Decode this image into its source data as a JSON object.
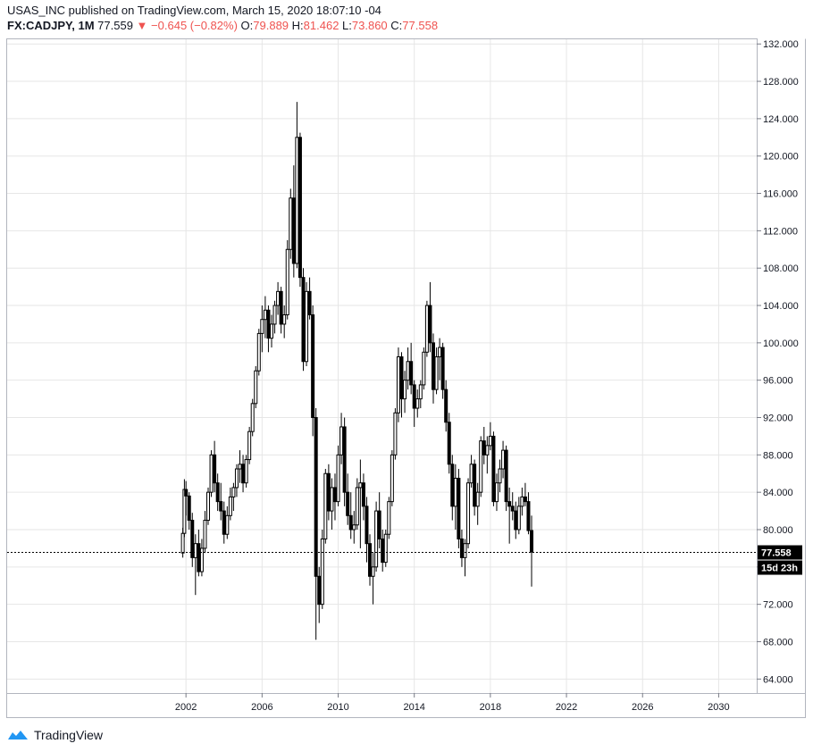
{
  "header": {
    "published": "USAS_INC published on TradingView.com, March 15, 2020 18:07:10 -04",
    "symbol": "FX:CADJPY, 1M",
    "last": "77.559",
    "change": "−0.645 (−0.82%)",
    "o_label": "O:",
    "o_value": "79.889",
    "h_label": "H:",
    "h_value": "81.462",
    "l_label": "L:",
    "l_value": "73.860",
    "c_label": "C:",
    "c_value": "77.558"
  },
  "footer": {
    "brand": "TradingView",
    "logo_icon": "tradingview-logo-icon"
  },
  "colors": {
    "candle": "#000000",
    "down_arrow": "#ef5350",
    "grid": "#e6e6e6",
    "price_tag": "#000000"
  },
  "chart_data": {
    "type": "candlestick",
    "symbol": "FX:CADJPY",
    "interval": "1M",
    "x_ticks": [
      "2002",
      "2006",
      "2010",
      "2014",
      "2018",
      "2022",
      "2026",
      "2030"
    ],
    "y_ticks": [
      "64.000",
      "68.000",
      "72.000",
      "76.000",
      "80.000",
      "84.000",
      "88.000",
      "92.000",
      "96.000",
      "100.000",
      "104.000",
      "108.000",
      "112.000",
      "116.000",
      "120.000",
      "124.000",
      "128.000",
      "132.000"
    ],
    "ylim": [
      62.5,
      132.5
    ],
    "xlim": [
      1992.6,
      2032.0
    ],
    "grid": true,
    "last_price_label": "77.558",
    "last_price": 77.558,
    "countdown_label": "15d 23h",
    "series": [
      {
        "t": "2001-11",
        "v": [
          77.5,
          80.2,
          77.0,
          79.6
        ]
      },
      {
        "t": "2001-12",
        "v": [
          79.6,
          85.4,
          79.2,
          84.3
        ]
      },
      {
        "t": "2002-01",
        "v": [
          84.3,
          85.2,
          81.5,
          83.6
        ]
      },
      {
        "t": "2002-03",
        "v": [
          83.6,
          84.0,
          80.0,
          81.0
        ]
      },
      {
        "t": "2002-05",
        "v": [
          81.0,
          81.8,
          76.0,
          77.0
        ]
      },
      {
        "t": "2002-07",
        "v": [
          77.0,
          79.5,
          73.0,
          78.5
        ]
      },
      {
        "t": "2002-09",
        "v": [
          78.5,
          80.0,
          75.0,
          75.5
        ]
      },
      {
        "t": "2002-11",
        "v": [
          75.5,
          79.0,
          75.0,
          78.0
        ]
      },
      {
        "t": "2003-01",
        "v": [
          78.0,
          82.0,
          77.5,
          81.0
        ]
      },
      {
        "t": "2003-03",
        "v": [
          81.0,
          84.5,
          80.5,
          84.0
        ]
      },
      {
        "t": "2003-05",
        "v": [
          84.0,
          88.5,
          83.5,
          88.0
        ]
      },
      {
        "t": "2003-07",
        "v": [
          88.0,
          89.5,
          84.0,
          85.0
        ]
      },
      {
        "t": "2003-09",
        "v": [
          85.0,
          86.0,
          82.0,
          83.0
        ]
      },
      {
        "t": "2003-11",
        "v": [
          83.0,
          85.0,
          81.0,
          82.0
        ]
      },
      {
        "t": "2004-01",
        "v": [
          82.0,
          83.0,
          78.5,
          79.5
        ]
      },
      {
        "t": "2004-03",
        "v": [
          79.5,
          82.5,
          79.0,
          81.5
        ]
      },
      {
        "t": "2004-05",
        "v": [
          81.5,
          84.5,
          81.0,
          83.5
        ]
      },
      {
        "t": "2004-07",
        "v": [
          83.5,
          85.0,
          82.0,
          84.5
        ]
      },
      {
        "t": "2004-09",
        "v": [
          84.5,
          87.0,
          83.5,
          86.5
        ]
      },
      {
        "t": "2004-11",
        "v": [
          86.5,
          88.5,
          85.0,
          87.0
        ]
      },
      {
        "t": "2005-01",
        "v": [
          87.0,
          88.0,
          84.0,
          85.0
        ]
      },
      {
        "t": "2005-03",
        "v": [
          85.0,
          88.0,
          84.5,
          87.5
        ]
      },
      {
        "t": "2005-05",
        "v": [
          87.5,
          91.0,
          87.0,
          90.5
        ]
      },
      {
        "t": "2005-07",
        "v": [
          90.5,
          94.0,
          90.0,
          93.5
        ]
      },
      {
        "t": "2005-09",
        "v": [
          93.5,
          97.5,
          93.0,
          97.0
        ]
      },
      {
        "t": "2005-11",
        "v": [
          97.0,
          101.5,
          96.5,
          101.0
        ]
      },
      {
        "t": "2006-01",
        "v": [
          101.0,
          104.0,
          99.0,
          102.5
        ]
      },
      {
        "t": "2006-03",
        "v": [
          102.5,
          105.0,
          100.5,
          103.5
        ]
      },
      {
        "t": "2006-05",
        "v": [
          103.5,
          104.0,
          99.0,
          100.5
        ]
      },
      {
        "t": "2006-07",
        "v": [
          100.5,
          103.0,
          99.5,
          102.0
        ]
      },
      {
        "t": "2006-09",
        "v": [
          102.0,
          104.5,
          101.0,
          104.0
        ]
      },
      {
        "t": "2006-11",
        "v": [
          104.0,
          106.5,
          103.0,
          105.5
        ]
      },
      {
        "t": "2007-01",
        "v": [
          105.5,
          106.0,
          101.0,
          102.0
        ]
      },
      {
        "t": "2007-03",
        "v": [
          102.0,
          104.0,
          100.5,
          103.0
        ]
      },
      {
        "t": "2007-05",
        "v": [
          103.0,
          111.0,
          102.5,
          110.0
        ]
      },
      {
        "t": "2007-07",
        "v": [
          110.0,
          116.5,
          109.0,
          115.5
        ]
      },
      {
        "t": "2007-09",
        "v": [
          115.5,
          119.0,
          107.0,
          108.5
        ]
      },
      {
        "t": "2007-11",
        "v": [
          108.5,
          125.8,
          108.0,
          122.0
        ]
      },
      {
        "t": "2008-01",
        "v": [
          122.0,
          122.5,
          106.0,
          107.0
        ]
      },
      {
        "t": "2008-03",
        "v": [
          107.0,
          108.0,
          97.0,
          98.0
        ]
      },
      {
        "t": "2008-05",
        "v": [
          98.0,
          106.5,
          97.5,
          105.5
        ]
      },
      {
        "t": "2008-07",
        "v": [
          105.5,
          107.0,
          102.5,
          103.0
        ]
      },
      {
        "t": "2008-09",
        "v": [
          103.0,
          104.0,
          90.0,
          92.0
        ]
      },
      {
        "t": "2008-11",
        "v": [
          92.0,
          93.0,
          68.2,
          75.0
        ]
      },
      {
        "t": "2009-01",
        "v": [
          75.0,
          76.0,
          70.0,
          72.0
        ]
      },
      {
        "t": "2009-03",
        "v": [
          72.0,
          80.0,
          71.5,
          79.0
        ]
      },
      {
        "t": "2009-05",
        "v": [
          79.0,
          86.5,
          78.5,
          86.0
        ]
      },
      {
        "t": "2009-07",
        "v": [
          86.0,
          87.0,
          81.0,
          82.0
        ]
      },
      {
        "t": "2009-09",
        "v": [
          82.0,
          85.5,
          80.0,
          84.5
        ]
      },
      {
        "t": "2009-11",
        "v": [
          84.5,
          86.0,
          81.0,
          83.0
        ]
      },
      {
        "t": "2010-01",
        "v": [
          83.0,
          89.0,
          82.5,
          88.0
        ]
      },
      {
        "t": "2010-03",
        "v": [
          88.0,
          92.5,
          87.0,
          91.0
        ]
      },
      {
        "t": "2010-05",
        "v": [
          91.0,
          92.0,
          82.5,
          84.0
        ]
      },
      {
        "t": "2010-07",
        "v": [
          84.0,
          86.0,
          80.5,
          81.5
        ]
      },
      {
        "t": "2010-09",
        "v": [
          81.5,
          84.0,
          79.0,
          80.0
        ]
      },
      {
        "t": "2010-11",
        "v": [
          80.0,
          82.0,
          78.5,
          80.5
        ]
      },
      {
        "t": "2011-01",
        "v": [
          80.5,
          85.5,
          80.0,
          84.5
        ]
      },
      {
        "t": "2011-03",
        "v": [
          84.5,
          87.5,
          78.0,
          85.0
        ]
      },
      {
        "t": "2011-05",
        "v": [
          85.0,
          86.0,
          81.0,
          82.5
        ]
      },
      {
        "t": "2011-07",
        "v": [
          82.5,
          83.5,
          76.5,
          78.5
        ]
      },
      {
        "t": "2011-09",
        "v": [
          78.5,
          79.5,
          74.0,
          75.0
        ]
      },
      {
        "t": "2011-11",
        "v": [
          75.0,
          77.5,
          72.0,
          76.0
        ]
      },
      {
        "t": "2012-01",
        "v": [
          76.0,
          83.0,
          75.5,
          82.0
        ]
      },
      {
        "t": "2012-03",
        "v": [
          82.0,
          84.0,
          78.0,
          79.0
        ]
      },
      {
        "t": "2012-05",
        "v": [
          79.0,
          80.0,
          75.5,
          76.5
        ]
      },
      {
        "t": "2012-07",
        "v": [
          76.5,
          80.0,
          76.0,
          79.5
        ]
      },
      {
        "t": "2012-09",
        "v": [
          79.5,
          83.5,
          79.0,
          83.0
        ]
      },
      {
        "t": "2012-11",
        "v": [
          83.0,
          88.5,
          82.5,
          88.0
        ]
      },
      {
        "t": "2013-01",
        "v": [
          88.0,
          93.0,
          87.5,
          92.5
        ]
      },
      {
        "t": "2013-03",
        "v": [
          92.5,
          99.5,
          91.5,
          98.5
        ]
      },
      {
        "t": "2013-05",
        "v": [
          98.5,
          99.0,
          92.0,
          94.0
        ]
      },
      {
        "t": "2013-07",
        "v": [
          94.0,
          97.0,
          92.5,
          96.0
        ]
      },
      {
        "t": "2013-09",
        "v": [
          96.0,
          99.5,
          95.0,
          98.0
        ]
      },
      {
        "t": "2013-11",
        "v": [
          98.0,
          100.0,
          94.5,
          95.5
        ]
      },
      {
        "t": "2014-01",
        "v": [
          95.5,
          96.0,
          91.0,
          93.0
        ]
      },
      {
        "t": "2014-03",
        "v": [
          93.0,
          95.0,
          92.0,
          94.0
        ]
      },
      {
        "t": "2014-05",
        "v": [
          94.0,
          96.0,
          93.0,
          95.5
        ]
      },
      {
        "t": "2014-07",
        "v": [
          95.5,
          99.5,
          95.0,
          99.0
        ]
      },
      {
        "t": "2014-09",
        "v": [
          99.0,
          104.5,
          98.5,
          104.0
        ]
      },
      {
        "t": "2014-11",
        "v": [
          104.0,
          106.5,
          99.0,
          100.0
        ]
      },
      {
        "t": "2015-01",
        "v": [
          100.0,
          101.0,
          93.5,
          95.0
        ]
      },
      {
        "t": "2015-03",
        "v": [
          95.0,
          99.5,
          94.5,
          98.5
        ]
      },
      {
        "t": "2015-05",
        "v": [
          98.5,
          100.5,
          96.0,
          99.5
        ]
      },
      {
        "t": "2015-07",
        "v": [
          99.5,
          100.0,
          94.0,
          95.0
        ]
      },
      {
        "t": "2015-09",
        "v": [
          95.0,
          96.0,
          90.5,
          91.5
        ]
      },
      {
        "t": "2015-11",
        "v": [
          91.5,
          92.5,
          86.0,
          87.0
        ]
      },
      {
        "t": "2016-01",
        "v": [
          87.0,
          88.0,
          81.0,
          82.5
        ]
      },
      {
        "t": "2016-03",
        "v": [
          82.5,
          87.0,
          80.0,
          85.5
        ]
      },
      {
        "t": "2016-05",
        "v": [
          85.5,
          86.5,
          78.0,
          79.0
        ]
      },
      {
        "t": "2016-07",
        "v": [
          79.0,
          80.0,
          76.0,
          77.0
        ]
      },
      {
        "t": "2016-09",
        "v": [
          77.0,
          79.0,
          75.0,
          78.5
        ]
      },
      {
        "t": "2016-11",
        "v": [
          78.5,
          85.5,
          78.0,
          85.0
        ]
      },
      {
        "t": "2017-01",
        "v": [
          85.0,
          88.0,
          84.5,
          87.0
        ]
      },
      {
        "t": "2017-03",
        "v": [
          87.0,
          87.5,
          81.5,
          82.5
        ]
      },
      {
        "t": "2017-05",
        "v": [
          82.5,
          85.0,
          80.5,
          84.0
        ]
      },
      {
        "t": "2017-07",
        "v": [
          84.0,
          90.0,
          83.5,
          89.5
        ]
      },
      {
        "t": "2017-09",
        "v": [
          89.5,
          91.0,
          87.0,
          88.0
        ]
      },
      {
        "t": "2017-11",
        "v": [
          88.0,
          90.0,
          86.0,
          89.0
        ]
      },
      {
        "t": "2018-01",
        "v": [
          89.0,
          91.5,
          88.5,
          90.0
        ]
      },
      {
        "t": "2018-03",
        "v": [
          90.0,
          90.5,
          82.5,
          83.0
        ]
      },
      {
        "t": "2018-05",
        "v": [
          83.0,
          86.0,
          82.0,
          85.0
        ]
      },
      {
        "t": "2018-07",
        "v": [
          85.0,
          87.5,
          84.0,
          86.5
        ]
      },
      {
        "t": "2018-09",
        "v": [
          86.5,
          89.5,
          85.5,
          88.5
        ]
      },
      {
        "t": "2018-11",
        "v": [
          88.5,
          89.0,
          82.0,
          83.0
        ]
      },
      {
        "t": "2019-01",
        "v": [
          83.0,
          84.5,
          78.5,
          82.5
        ]
      },
      {
        "t": "2019-03",
        "v": [
          82.5,
          84.0,
          81.0,
          82.0
        ]
      },
      {
        "t": "2019-05",
        "v": [
          82.0,
          83.0,
          79.0,
          80.0
        ]
      },
      {
        "t": "2019-07",
        "v": [
          80.0,
          83.5,
          79.5,
          82.5
        ]
      },
      {
        "t": "2019-09",
        "v": [
          82.5,
          84.5,
          81.5,
          83.5
        ]
      },
      {
        "t": "2019-11",
        "v": [
          83.5,
          85.0,
          82.5,
          83.0
        ]
      },
      {
        "t": "2020-01",
        "v": [
          83.0,
          84.0,
          79.5,
          79.9
        ]
      },
      {
        "t": "2020-03",
        "v": [
          79.9,
          81.5,
          73.9,
          77.6
        ]
      }
    ]
  }
}
